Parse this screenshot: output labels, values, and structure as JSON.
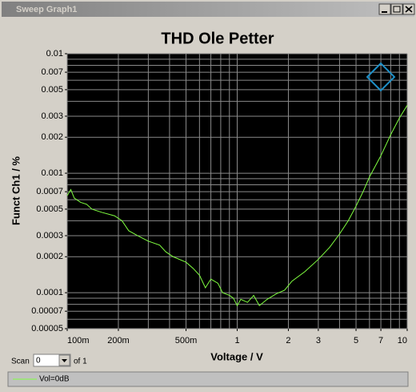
{
  "window": {
    "title": "Sweep Graph1",
    "scan_label": "Scan",
    "scan_value": "0",
    "scan_of": "of 1"
  },
  "chart_data": {
    "type": "line",
    "title": "THD Ole Petter",
    "x_label": "Voltage / V",
    "y_label": "Funct Ch1 / %",
    "xscale": "log",
    "yscale": "log",
    "grid": true,
    "xlim": [
      0.1,
      10
    ],
    "ylim": [
      5e-05,
      0.01
    ],
    "xticks": [
      {
        "value": 0.1,
        "label": "100m"
      },
      {
        "value": 0.2,
        "label": "200m"
      },
      {
        "value": 0.5,
        "label": "500m"
      },
      1,
      2,
      3,
      5,
      7,
      10
    ],
    "yticks": [
      0.01,
      0.007,
      0.005,
      0.003,
      0.002,
      0.001,
      0.0007,
      0.0005,
      0.0003,
      0.0002,
      0.0001,
      7e-05,
      5e-05
    ],
    "xgrid": [
      0.1,
      0.2,
      0.3,
      0.4,
      0.5,
      0.6,
      0.7,
      0.8,
      0.9,
      1,
      2,
      3,
      4,
      5,
      6,
      7,
      8,
      9,
      10
    ],
    "ygrid": [
      5e-05,
      6e-05,
      7e-05,
      8e-05,
      9e-05,
      0.0001,
      0.0002,
      0.0003,
      0.0004,
      0.0005,
      0.0006,
      0.0007,
      0.0008,
      0.0009,
      0.001,
      0.002,
      0.003,
      0.004,
      0.005,
      0.006,
      0.007,
      0.008,
      0.009,
      0.01
    ],
    "x": [
      0.1,
      0.105,
      0.11,
      0.12,
      0.13,
      0.14,
      0.16,
      0.19,
      0.21,
      0.23,
      0.26,
      0.3,
      0.35,
      0.38,
      0.42,
      0.5,
      0.55,
      0.6,
      0.65,
      0.7,
      0.77,
      0.82,
      0.9,
      0.95,
      1.0,
      1.05,
      1.15,
      1.25,
      1.35,
      1.5,
      1.7,
      1.9,
      2.1,
      2.5,
      3.0,
      3.5,
      4.0,
      4.5,
      5.0,
      5.5,
      6.0,
      7.0,
      8.0,
      9.0,
      10
    ],
    "series": [
      {
        "name": "Vol=0dB",
        "color": "#80ff40",
        "values": [
          0.00065,
          0.00073,
          0.00062,
          0.00057,
          0.00055,
          0.0005,
          0.00047,
          0.00044,
          0.0004,
          0.00033,
          0.0003,
          0.00027,
          0.00025,
          0.00022,
          0.0002,
          0.00018,
          0.00016,
          0.00014,
          0.00011,
          0.00013,
          0.00012,
          0.0001,
          9.5e-05,
          9e-05,
          7.8e-05,
          8.8e-05,
          8.3e-05,
          9.5e-05,
          7.8e-05,
          8.8e-05,
          9.8e-05,
          0.000105,
          0.000125,
          0.00015,
          0.00019,
          0.00024,
          0.00031,
          0.0004,
          0.00053,
          0.0007,
          0.00093,
          0.0014,
          0.0021,
          0.0029,
          0.0037
        ]
      }
    ]
  }
}
